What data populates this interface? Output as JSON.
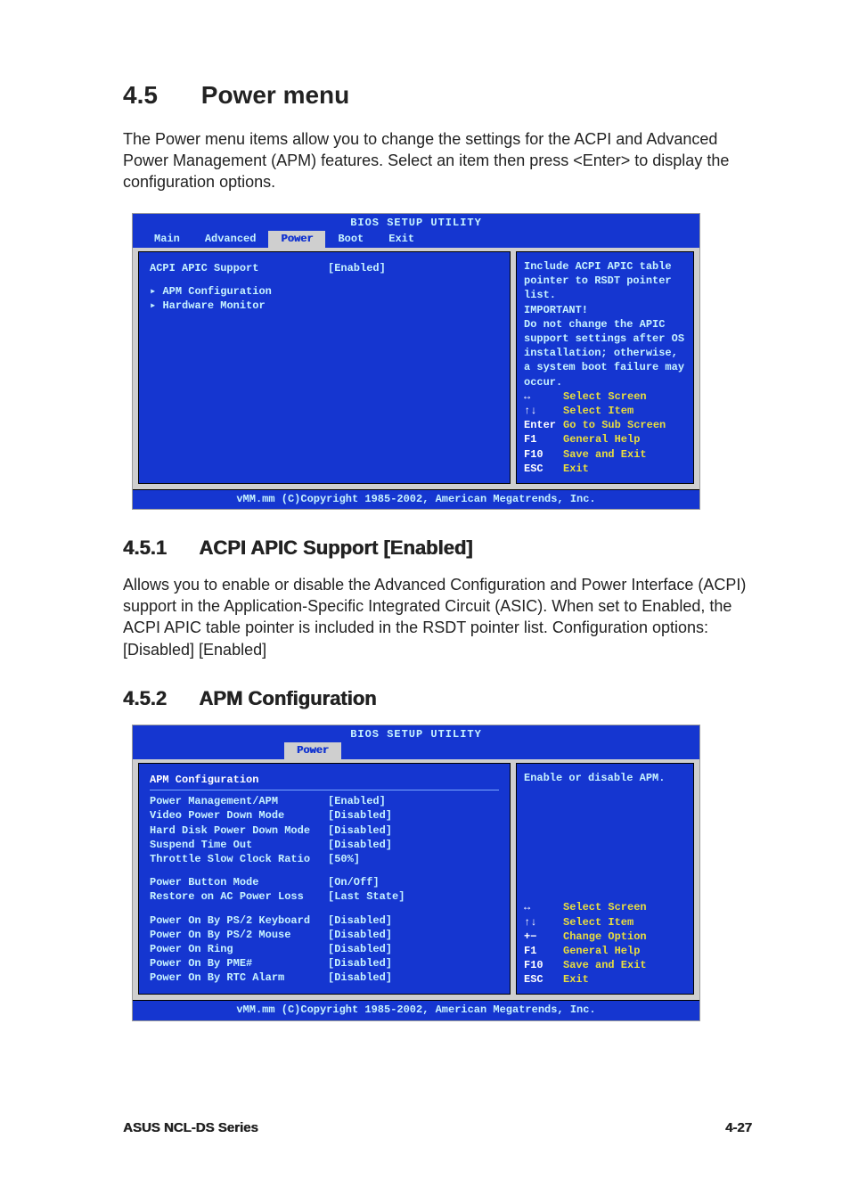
{
  "section": {
    "number": "4.5",
    "title": "Power menu",
    "intro": "The Power menu items allow you to change the settings for the ACPI and Advanced Power Management (APM) features. Select an item then press <Enter> to display the configuration options."
  },
  "bios1": {
    "title": "BIOS SETUP UTILITY",
    "tabs": [
      "Main",
      "Advanced",
      "Power",
      "Boot",
      "Exit"
    ],
    "active_tab": "Power",
    "items": [
      {
        "label": "ACPI APIC Support",
        "value": "[Enabled]",
        "type": "option"
      },
      {
        "label": "APM Configuration",
        "value": "",
        "type": "submenu"
      },
      {
        "label": "Hardware Monitor",
        "value": "",
        "type": "submenu"
      }
    ],
    "help": "Include ACPI APIC table pointer to RSDT pointer list.\nIMPORTANT!\nDo not change the APIC support settings after OS installation; otherwise, a system boot failure may occur.",
    "keys": [
      {
        "k": "↔",
        "l": "Select Screen"
      },
      {
        "k": "↑↓",
        "l": "Select Item"
      },
      {
        "k": "Enter",
        "l": "Go to Sub Screen"
      },
      {
        "k": "F1",
        "l": "General Help"
      },
      {
        "k": "F10",
        "l": "Save and Exit"
      },
      {
        "k": "ESC",
        "l": "Exit"
      }
    ],
    "footer": "vMM.mm (C)Copyright 1985-2002, American Megatrends, Inc."
  },
  "sub1": {
    "number": "4.5.1",
    "title": "ACPI APIC Support [Enabled]",
    "body": "Allows you to enable or disable the Advanced Configuration and Power Interface (ACPI) support in the Application-Specific Integrated Circuit (ASIC). When set to Enabled, the ACPI APIC table pointer is included in the RSDT pointer list. Configuration options: [Disabled] [Enabled]"
  },
  "sub2": {
    "number": "4.5.2",
    "title": "APM Configuration"
  },
  "bios2": {
    "title": "BIOS SETUP UTILITY",
    "active_tab": "Power",
    "heading": "APM Configuration",
    "groups": [
      [
        {
          "label": "Power Management/APM",
          "value": "[Enabled]"
        },
        {
          "label": "Video Power Down Mode",
          "value": "[Disabled]"
        },
        {
          "label": "Hard Disk Power Down Mode",
          "value": "[Disabled]"
        },
        {
          "label": "Suspend Time Out",
          "value": "[Disabled]"
        },
        {
          "label": "Throttle Slow Clock Ratio",
          "value": "[50%]"
        }
      ],
      [
        {
          "label": "Power Button Mode",
          "value": "[On/Off]"
        },
        {
          "label": "Restore on AC Power Loss",
          "value": "[Last State]"
        }
      ],
      [
        {
          "label": "Power On By PS/2 Keyboard",
          "value": "[Disabled]"
        },
        {
          "label": "Power On By PS/2 Mouse",
          "value": "[Disabled]"
        },
        {
          "label": "Power On Ring",
          "value": "[Disabled]"
        },
        {
          "label": "Power On By PME#",
          "value": "[Disabled]"
        },
        {
          "label": "Power On By RTC Alarm",
          "value": "[Disabled]"
        }
      ]
    ],
    "help": "Enable or disable APM.",
    "keys": [
      {
        "k": "↔",
        "l": "Select Screen"
      },
      {
        "k": "↑↓",
        "l": "Select Item"
      },
      {
        "k": "+−",
        "l": "Change Option"
      },
      {
        "k": "F1",
        "l": "General Help"
      },
      {
        "k": "F10",
        "l": "Save and Exit"
      },
      {
        "k": "ESC",
        "l": "Exit"
      }
    ],
    "footer": "vMM.mm (C)Copyright 1985-2002, American Megatrends, Inc."
  },
  "page_footer": {
    "left": "ASUS NCL-DS Series",
    "right": "4-27"
  }
}
